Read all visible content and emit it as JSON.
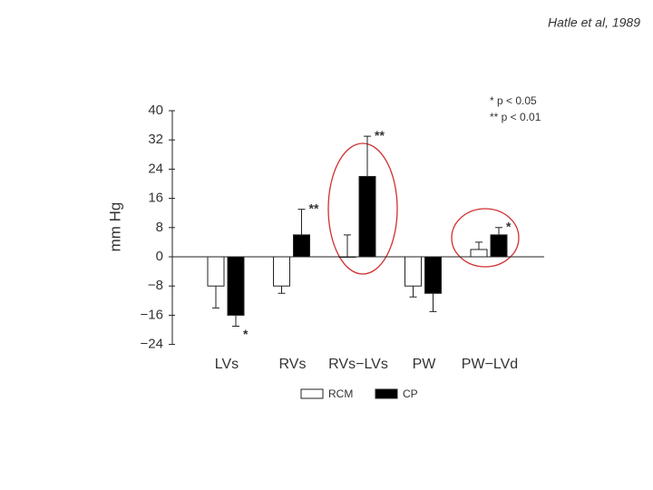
{
  "source": "Hatle et al, 1989",
  "chart_data": {
    "type": "bar",
    "ylabel": "mm Hg",
    "categories": [
      "LVs",
      "RVs",
      "RVs−LVs",
      "PW",
      "PW−LVd"
    ],
    "series": [
      {
        "name": "RCM",
        "color": "#ffffff",
        "values": [
          -8,
          -8,
          0,
          -8,
          2
        ],
        "errors": [
          6,
          2,
          6,
          3,
          2
        ],
        "sig": [
          null,
          null,
          null,
          null,
          null
        ]
      },
      {
        "name": "CP",
        "color": "#000000",
        "values": [
          -16,
          6,
          22,
          -10,
          6
        ],
        "errors": [
          3,
          7,
          11,
          5,
          2
        ],
        "sig": [
          "*",
          "**",
          "**",
          null,
          "*"
        ]
      }
    ],
    "ylim": [
      -24,
      40
    ],
    "yticks": [
      {
        "value": -24,
        "label": "−24"
      },
      {
        "value": -16,
        "label": "−16"
      },
      {
        "value": -8,
        "label": "−8"
      },
      0,
      8,
      16,
      24,
      32,
      40
    ],
    "notes": [
      "* p < 0.05",
      "** p < 0.01"
    ]
  }
}
